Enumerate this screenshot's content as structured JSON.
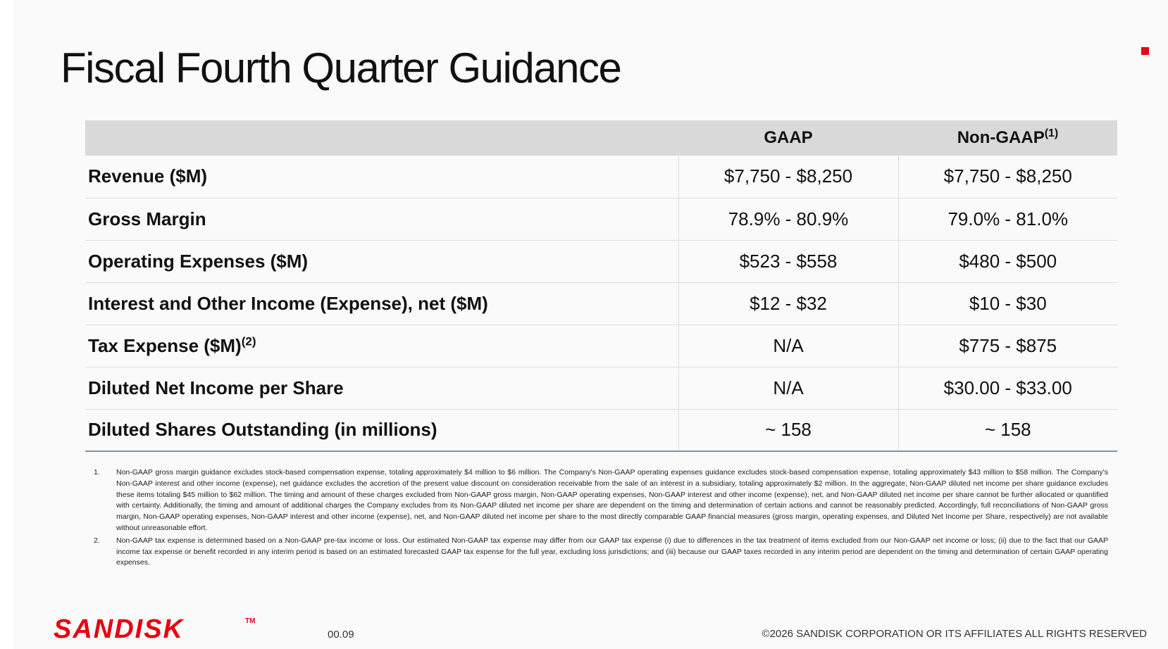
{
  "slide": {
    "title": "Fiscal Fourth Quarter Guidance",
    "accent_color": "#e60012"
  },
  "table": {
    "headers": {
      "metric": "",
      "gaap": "GAAP",
      "non_gaap": "Non-GAAP",
      "non_gaap_footnote": "(1)"
    },
    "rows": [
      {
        "metric": "Revenue ($M)",
        "footnote": "",
        "gaap": "$7,750 - $8,250",
        "non_gaap": "$7,750 - $8,250"
      },
      {
        "metric": "Gross Margin",
        "footnote": "",
        "gaap": "78.9% - 80.9%",
        "non_gaap": "79.0% - 81.0%"
      },
      {
        "metric": "Operating Expenses ($M)",
        "footnote": "",
        "gaap": "$523 - $558",
        "non_gaap": "$480 - $500"
      },
      {
        "metric": "Interest and Other Income (Expense), net ($M)",
        "footnote": "",
        "gaap": "$12 - $32",
        "non_gaap": "$10 - $30"
      },
      {
        "metric": "Tax Expense ($M)",
        "footnote": "(2)",
        "gaap": "N/A",
        "non_gaap": "$775 - $875"
      },
      {
        "metric": "Diluted Net Income per Share",
        "footnote": "",
        "gaap": "N/A",
        "non_gaap": "$30.00 - $33.00"
      },
      {
        "metric": "Diluted Shares Outstanding (in millions)",
        "footnote": "",
        "gaap": "~ 158",
        "non_gaap": "~ 158"
      }
    ]
  },
  "footnotes": [
    {
      "number": "1.",
      "text": "Non-GAAP gross margin guidance excludes stock-based compensation expense, totaling approximately $4 million to $6 million. The Company's Non-GAAP operating expenses guidance excludes stock-based compensation expense, totaling approximately $43 million to $58 million. The Company's Non-GAAP interest and other income (expense), net guidance excludes the accretion of the present value discount on consideration receivable from the sale of an interest in a subsidiary, totaling approximately $2 million. In the aggregate, Non-GAAP diluted net income per share guidance excludes these items totaling $45 million to $62 million. The timing and amount of these charges excluded from Non-GAAP gross margin, Non-GAAP operating expenses, Non-GAAP interest and other income (expense), net, and Non-GAAP diluted net income per share cannot be further allocated or quantified with certainty. Additionally, the timing and amount of additional charges the Company excludes from its Non-GAAP diluted net income per share are dependent on the timing and determination of certain actions and cannot be reasonably predicted. Accordingly, full reconciliations of Non-GAAP gross margin, Non-GAAP operating expenses, Non-GAAP interest and other income (expense), net, and Non-GAAP diluted net income per share to the most directly comparable GAAP financial measures (gross margin, operating expenses, and Diluted Net Income per Share, respectively) are not available without unreasonable effort."
    },
    {
      "number": "2.",
      "text": "Non-GAAP tax expense is determined based on a Non-GAAP pre-tax income or loss. Our estimated Non-GAAP tax expense may differ from our GAAP tax expense (i) due to differences in the tax treatment of items excluded from our Non-GAAP net income or loss; (ii) due to the fact that our GAAP income tax expense or benefit recorded in any interim period is based on an estimated forecasted GAAP tax expense for the full year, excluding loss jurisdictions; and (iii) because our GAAP taxes recorded in any interim period are dependent on the timing and determination of certain GAAP operating expenses."
    }
  ],
  "footer": {
    "logo_text": "SANDISK",
    "logo_tm": "TM",
    "logo_color": "#e60012",
    "slide_number": "00.09",
    "copyright": "©2026 SANDISK CORPORATION OR ITS AFFILIATES ALL RIGHTS RESERVED"
  }
}
